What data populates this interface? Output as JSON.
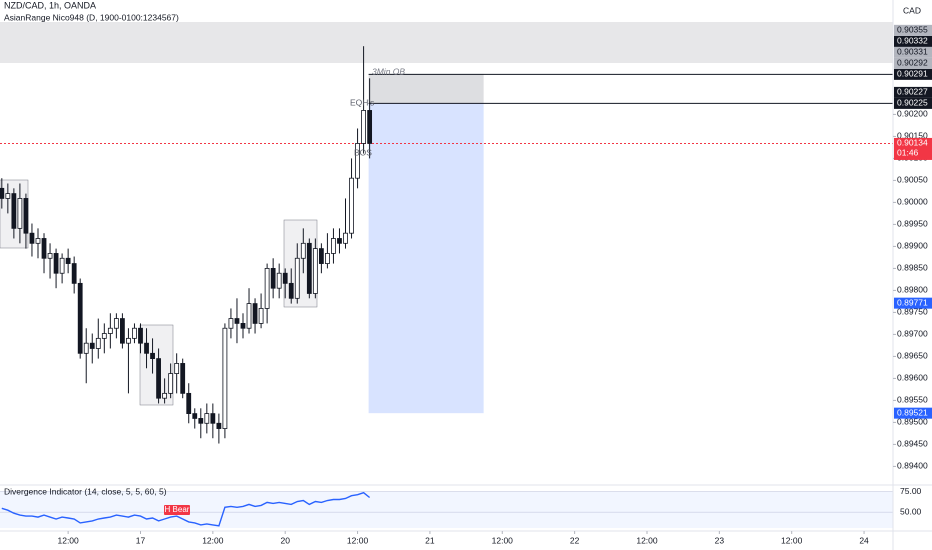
{
  "chart_data": [
    {
      "type": "candlestick",
      "title": "NZD/CAD, 1h, OANDA",
      "indicator": "AsianRange Nico948 (D, 1900-0100:1234567)",
      "currency": "CAD",
      "open": [
        0.90032,
        0.90009,
        0.9002,
        0.89941,
        0.90009,
        0.8993,
        0.89907,
        0.89918,
        0.89873,
        0.89884,
        0.89839,
        0.89873,
        0.89861,
        0.89816,
        0.89657,
        0.8968,
        0.89668,
        0.89691,
        0.89702,
        0.89714,
        0.89736,
        0.8968,
        0.89691,
        0.89714,
        0.8968,
        0.89657,
        0.89645,
        0.89555,
        0.89566,
        0.89611,
        0.89634,
        0.89566,
        0.8952,
        0.89509,
        0.89498,
        0.8952,
        0.89498,
        0.89486,
        0.89714,
        0.89736,
        0.89725,
        0.89714,
        0.8977,
        0.89725,
        0.89759,
        0.8985,
        0.89805,
        0.89839,
        0.89816,
        0.89782,
        0.89873,
        0.89907,
        0.89793,
        0.89895,
        0.89861,
        0.89884,
        0.89918,
        0.89907,
        0.8993,
        0.90055,
        0.90134,
        0.90209
      ],
      "high": [
        0.90055,
        0.90043,
        0.90032,
        0.90043,
        0.9002,
        0.89952,
        0.89941,
        0.8993,
        0.89907,
        0.89895,
        0.89884,
        0.89895,
        0.89877,
        0.89827,
        0.89714,
        0.89702,
        0.89736,
        0.89725,
        0.89748,
        0.89748,
        0.89748,
        0.89714,
        0.89725,
        0.89725,
        0.89714,
        0.89691,
        0.89668,
        0.896,
        0.89634,
        0.89657,
        0.89645,
        0.89589,
        0.89532,
        0.89532,
        0.89543,
        0.89543,
        0.8952,
        0.89725,
        0.89759,
        0.89782,
        0.89748,
        0.89805,
        0.89782,
        0.89793,
        0.89861,
        0.89873,
        0.89861,
        0.8985,
        0.8985,
        0.89907,
        0.89941,
        0.89918,
        0.89918,
        0.89907,
        0.8993,
        0.89941,
        0.89941,
        0.90009,
        0.901,
        0.90168,
        0.90355,
        0.90282
      ],
      "low": [
        0.89986,
        0.89975,
        0.89918,
        0.89907,
        0.89895,
        0.89877,
        0.89873,
        0.89839,
        0.89827,
        0.89805,
        0.89816,
        0.89839,
        0.89793,
        0.89645,
        0.89589,
        0.89634,
        0.89645,
        0.89657,
        0.89668,
        0.89691,
        0.89668,
        0.89566,
        0.8968,
        0.89657,
        0.89623,
        0.89611,
        0.89543,
        0.89543,
        0.89555,
        0.89566,
        0.89555,
        0.89498,
        0.89486,
        0.89464,
        0.89475,
        0.89464,
        0.89452,
        0.89464,
        0.89691,
        0.8968,
        0.89691,
        0.89702,
        0.89702,
        0.89714,
        0.89725,
        0.89782,
        0.89782,
        0.89782,
        0.8977,
        0.8977,
        0.89839,
        0.89782,
        0.89782,
        0.89839,
        0.8985,
        0.89861,
        0.89884,
        0.89895,
        0.89918,
        0.90032,
        0.90111,
        0.901
      ],
      "close": [
        0.90009,
        0.9002,
        0.89941,
        0.90009,
        0.8993,
        0.89907,
        0.89918,
        0.89873,
        0.89884,
        0.89839,
        0.89873,
        0.89861,
        0.89816,
        0.89657,
        0.8968,
        0.89668,
        0.89691,
        0.89702,
        0.89714,
        0.89736,
        0.8968,
        0.89691,
        0.89714,
        0.8968,
        0.89657,
        0.89645,
        0.89555,
        0.89566,
        0.89611,
        0.89634,
        0.89566,
        0.8952,
        0.89509,
        0.89498,
        0.8952,
        0.89498,
        0.89486,
        0.89714,
        0.89736,
        0.89725,
        0.89714,
        0.8977,
        0.89725,
        0.89759,
        0.8985,
        0.89805,
        0.89839,
        0.89816,
        0.89782,
        0.89873,
        0.89907,
        0.89793,
        0.89895,
        0.89861,
        0.89884,
        0.89918,
        0.89907,
        0.8993,
        0.90055,
        0.90134,
        0.90209,
        0.90134
      ],
      "up_color": "#ffffff",
      "down_color": "#131722",
      "current_color": "#f23645",
      "countdown": "01:46",
      "xlim": [
        -0.3,
        147.8
      ],
      "xticks": [
        {
          "value": 11,
          "label": "12:00"
        },
        {
          "value": 23,
          "label": "17"
        },
        {
          "value": 35,
          "label": "12:00"
        },
        {
          "value": 47,
          "label": "20"
        },
        {
          "value": 59,
          "label": "12:00"
        },
        {
          "value": 71,
          "label": "21"
        },
        {
          "value": 83,
          "label": "12:00"
        },
        {
          "value": 95,
          "label": "22"
        },
        {
          "value": 107,
          "label": "12:00"
        },
        {
          "value": 119,
          "label": "23"
        },
        {
          "value": 131,
          "label": "12:00"
        },
        {
          "value": 143,
          "label": "24"
        }
      ],
      "ylim": [
        0.8936,
        0.9046
      ],
      "yticks": [
        {
          "value": 0.902,
          "label": "0.90200"
        },
        {
          "value": 0.9015,
          "label": "0.90150"
        },
        {
          "value": 0.901,
          "label": "0.90100"
        },
        {
          "value": 0.9005,
          "label": "0.90050"
        },
        {
          "value": 0.9,
          "label": "0.90000"
        },
        {
          "value": 0.8995,
          "label": "0.89950"
        },
        {
          "value": 0.899,
          "label": "0.89900"
        },
        {
          "value": 0.8985,
          "label": "0.89850"
        },
        {
          "value": 0.898,
          "label": "0.89800"
        },
        {
          "value": 0.8975,
          "label": "0.89750"
        },
        {
          "value": 0.897,
          "label": "0.89700"
        },
        {
          "value": 0.8965,
          "label": "0.89650"
        },
        {
          "value": 0.896,
          "label": "0.89600"
        },
        {
          "value": 0.8955,
          "label": "0.89550"
        },
        {
          "value": 0.895,
          "label": "0.89500"
        },
        {
          "value": 0.8945,
          "label": "0.89450"
        },
        {
          "value": 0.894,
          "label": "0.89400"
        }
      ],
      "price_labels": [
        {
          "value": 0.90355,
          "color": "#b2b5be",
          "text_color": "#131722"
        },
        {
          "value": 0.90332,
          "color": "#131722",
          "text_color": "#ffffff"
        },
        {
          "value": 0.90331,
          "color": "#b2b5be",
          "text_color": "#131722"
        },
        {
          "value": 0.90291,
          "color": "#131722",
          "text_color": "#ffffff",
          "line": true
        },
        {
          "value": 0.90227,
          "color": "#131722",
          "text_color": "#ffffff"
        },
        {
          "value": 0.89771,
          "color": "#2962ff",
          "text_color": "#ffffff"
        }
      ],
      "position": {
        "stop": {
          "value": 0.90292,
          "color": "#b2b5be",
          "text_color": "#131722"
        },
        "entry": {
          "value": 0.90225,
          "color": "#131722",
          "text_color": "#ffffff",
          "line": true
        },
        "target": {
          "value": 0.89521,
          "color": "#2962ff",
          "text_color": "#ffffff"
        }
      },
      "annotations": [
        "3Min OB",
        "EQH's",
        "BOS"
      ]
    },
    {
      "type": "line",
      "title": "Divergence Indicator (14, close, 5, 5, 60, 5)",
      "color": "#2962ff",
      "values": [
        54.8,
        52.4,
        48.8,
        46.4,
        45.2,
        45.2,
        44.0,
        46.4,
        44.0,
        41.7,
        44.0,
        42.9,
        41.7,
        36.9,
        38.1,
        39.3,
        41.7,
        42.9,
        44.0,
        46.4,
        45.2,
        44.0,
        46.4,
        45.2,
        41.7,
        42.9,
        39.3,
        41.7,
        44.0,
        45.2,
        41.7,
        38.1,
        36.9,
        34.5,
        35.7,
        34.5,
        33.3,
        56.0,
        57.1,
        56.0,
        57.1,
        59.5,
        57.1,
        58.3,
        61.9,
        60.7,
        61.9,
        60.7,
        59.5,
        63.1,
        64.3,
        59.5,
        63.1,
        61.9,
        64.3,
        65.5,
        65.5,
        66.7,
        70.2,
        71.4,
        73.8,
        67.9
      ],
      "xlim": [
        -0.3,
        147.8
      ],
      "ylim": [
        27,
        82
      ],
      "yticks": [
        {
          "value": 75,
          "label": "75.00"
        },
        {
          "value": 50,
          "label": "50.00"
        }
      ],
      "annotation": "H Bear"
    }
  ]
}
